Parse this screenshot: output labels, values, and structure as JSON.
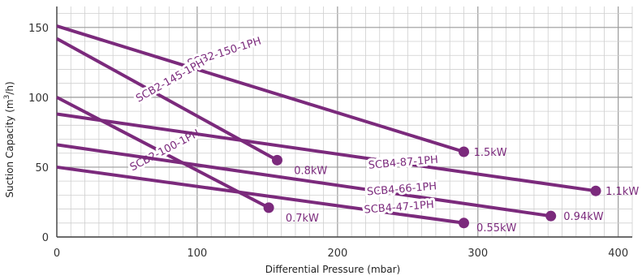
{
  "chart_data": {
    "type": "line",
    "xlabel": "Differential Pressure (mbar)",
    "ylabel_main": "Suction Capacity (m",
    "ylabel_sup": "3",
    "ylabel_tail": "/h)",
    "xlim": [
      0,
      410
    ],
    "ylim": [
      0,
      165
    ],
    "x_ticks": [
      0,
      100,
      200,
      300,
      400
    ],
    "y_ticks": [
      0,
      50,
      100,
      150
    ],
    "x_tick_labels": [
      "0",
      "100",
      "200",
      "300",
      "400"
    ],
    "y_tick_labels": [
      "0",
      "50",
      "100",
      "150"
    ],
    "grid": true,
    "line_color": "#7b2a7c",
    "grid_minor_color": "#cfcfcf",
    "grid_major_color": "#9a9a9a",
    "series": [
      {
        "name": "SCB2-150-1PH",
        "power": "1.5kW",
        "x": [
          0,
          290
        ],
        "y": [
          151,
          61
        ],
        "label_pos": [
          120,
          130,
          -17.7
        ],
        "power_pos": [
          297,
          61
        ]
      },
      {
        "name": "SCB2-145-1PH",
        "power": "0.8kW",
        "x": [
          0,
          157
        ],
        "y": [
          142,
          55
        ],
        "label_pos": [
          82,
          110,
          -29.5
        ],
        "power_pos": [
          169,
          48
        ]
      },
      {
        "name": "SCB2-100-1PH",
        "power": "0.7kW",
        "x": [
          0,
          151
        ],
        "y": [
          100,
          21
        ],
        "label_pos": [
          78,
          60,
          -27.7
        ],
        "power_pos": [
          163,
          14
        ]
      },
      {
        "name": "SCB4-87-1PH",
        "power": "1.1kW",
        "x": [
          0,
          384
        ],
        "y": [
          88,
          33
        ],
        "label_pos": [
          247,
          51,
          -4.7
        ],
        "power_pos": [
          391,
          33
        ]
      },
      {
        "name": "SCB4-66-1PH",
        "power": "0.94kW",
        "x": [
          0,
          352
        ],
        "y": [
          66,
          15
        ],
        "label_pos": [
          246,
          32,
          -4.8
        ],
        "power_pos": [
          361,
          15
        ]
      },
      {
        "name": "SCB4-47-1PH",
        "power": "0.55kW",
        "x": [
          0,
          290
        ],
        "y": [
          50,
          10
        ],
        "label_pos": [
          244,
          19,
          -4.4
        ],
        "power_pos": [
          299,
          7
        ]
      }
    ]
  }
}
